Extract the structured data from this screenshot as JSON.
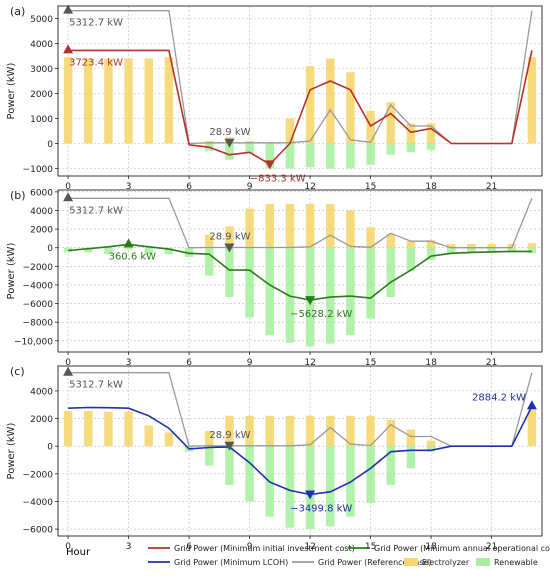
{
  "x_label": "Hour",
  "chart_data": [
    {
      "panel": "(a)",
      "type": "bar+line",
      "ylabel": "Power (kW)",
      "ylim": [
        -1300,
        5500
      ],
      "yticks": [
        -1000,
        0,
        1000,
        2000,
        3000,
        4000,
        5000
      ],
      "ytick_labels": [
        "−1000",
        "0",
        "1000",
        "2000",
        "3000",
        "4000",
        "5000"
      ],
      "xlim": [
        -0.5,
        23.5
      ],
      "xticks": [
        0,
        3,
        6,
        9,
        12,
        15,
        18,
        21
      ],
      "grid": true,
      "x": [
        0,
        1,
        2,
        3,
        4,
        5,
        6,
        7,
        8,
        9,
        10,
        11,
        12,
        13,
        14,
        15,
        16,
        17,
        18,
        19,
        20,
        21,
        22,
        23
      ],
      "electrolyzer": [
        3450,
        3400,
        3400,
        3400,
        3400,
        3450,
        0,
        100,
        250,
        100,
        0,
        1000,
        3100,
        3400,
        2850,
        1300,
        1650,
        800,
        800,
        0,
        0,
        0,
        0,
        3450
      ],
      "renewable": [
        0,
        0,
        0,
        0,
        0,
        0,
        0,
        -300,
        -650,
        -400,
        -1000,
        -1000,
        -950,
        -1000,
        -1000,
        -850,
        -450,
        -350,
        -250,
        0,
        0,
        0,
        0,
        0
      ],
      "series": [
        {
          "name": "Grid Power (Minimum initial investment cost)",
          "color": "#b5312a",
          "values": [
            3723.4,
            3723,
            3723,
            3723,
            3723,
            3723,
            -50,
            -150,
            -450,
            -350,
            -833.3,
            0,
            2150,
            2500,
            2150,
            700,
            1200,
            450,
            600,
            0,
            0,
            0,
            0,
            3723.4
          ]
        },
        {
          "name": "Grid Power (Reference case)",
          "color": "#999999",
          "values": [
            5312.7,
            5312.7,
            5312.7,
            5312.7,
            5312.7,
            5312.7,
            0,
            28.9,
            28.9,
            28.9,
            28.9,
            28.9,
            100,
            1350,
            150,
            50,
            1550,
            700,
            700,
            0,
            0,
            0,
            0,
            5312.7
          ]
        }
      ],
      "annotations": [
        {
          "text": "5312.7  kW",
          "x": 0,
          "y": 5312.7,
          "color": "#555555",
          "marker": "up"
        },
        {
          "text": "3723.4  kW",
          "x": 0,
          "y": 3723.4,
          "color": "#b5312a",
          "marker": "up"
        },
        {
          "text": "28.9  kW",
          "x": 8,
          "y": 28.9,
          "color": "#555555",
          "marker": "down"
        },
        {
          "text": "−833.3  kW",
          "x": 10,
          "y": -833.3,
          "color": "#b5312a",
          "marker": "down"
        }
      ]
    },
    {
      "panel": "(b)",
      "type": "bar+line",
      "ylabel": "Power (kW)",
      "ylim": [
        -11200,
        6200
      ],
      "yticks": [
        -10000,
        -8000,
        -6000,
        -4000,
        -2000,
        0,
        2000,
        4000,
        6000
      ],
      "ytick_labels": [
        "−10,000",
        "−8000",
        "−6000",
        "−4000",
        "−2000",
        "0",
        "2000",
        "4000",
        "6000"
      ],
      "xlim": [
        -0.5,
        23.5
      ],
      "xticks": [
        0,
        3,
        6,
        9,
        12,
        15,
        18,
        21
      ],
      "grid": true,
      "x": [
        0,
        1,
        2,
        3,
        4,
        5,
        6,
        7,
        8,
        9,
        10,
        11,
        12,
        13,
        14,
        15,
        16,
        17,
        18,
        19,
        20,
        21,
        22,
        23
      ],
      "electrolyzer": [
        0,
        0,
        0,
        360,
        0,
        0,
        0,
        1400,
        2300,
        4200,
        4700,
        4700,
        4700,
        4700,
        4000,
        2200,
        1500,
        700,
        800,
        400,
        400,
        400,
        400,
        500
      ],
      "renewable": [
        -500,
        -500,
        -700,
        -200,
        -700,
        -700,
        -1000,
        -3000,
        -5300,
        -7500,
        -9400,
        -10200,
        -10600,
        -10300,
        -9400,
        -7600,
        -5300,
        -2500,
        -1300,
        -600,
        -500,
        -500,
        -500,
        -600
      ],
      "series": [
        {
          "name": "Grid Power (Minimum annual operational cost)",
          "color": "#2d7a1e",
          "values": [
            -300,
            -100,
            100,
            360.6,
            100,
            -150,
            -600,
            -700,
            -2400,
            -2400,
            -4000,
            -5200,
            -5628.2,
            -5300,
            -5200,
            -5400,
            -3700,
            -2400,
            -900,
            -600,
            -500,
            -450,
            -400,
            -400
          ]
        },
        {
          "name": "Grid Power (Reference case)",
          "color": "#999999",
          "values": [
            5312.7,
            5312.7,
            5312.7,
            5312.7,
            5312.7,
            5312.7,
            0,
            28.9,
            28.9,
            28.9,
            28.9,
            28.9,
            100,
            1350,
            150,
            50,
            1550,
            700,
            700,
            0,
            0,
            0,
            0,
            5312.7
          ]
        }
      ],
      "annotations": [
        {
          "text": "5312.7  kW",
          "x": 0,
          "y": 5312.7,
          "color": "#555555",
          "marker": "up"
        },
        {
          "text": "360.6  kW",
          "x": 3,
          "y": 360.6,
          "color": "#2d7a1e",
          "marker": "up"
        },
        {
          "text": "28.9  kW",
          "x": 8,
          "y": 28.9,
          "color": "#555555",
          "marker": "down"
        },
        {
          "text": "−5628.2  kW",
          "x": 12,
          "y": -5628.2,
          "color": "#2d7a1e",
          "marker": "down"
        }
      ]
    },
    {
      "panel": "(c)",
      "type": "bar+line",
      "ylabel": "Power (kW)",
      "ylim": [
        -6500,
        5800
      ],
      "yticks": [
        -6000,
        -4000,
        -2000,
        0,
        2000,
        4000
      ],
      "ytick_labels": [
        "−6000",
        "−4000",
        "−2000",
        "0",
        "2000",
        "4000"
      ],
      "xlim": [
        -0.5,
        23.5
      ],
      "xticks": [
        0,
        3,
        6,
        9,
        12,
        15,
        18,
        21
      ],
      "grid": true,
      "x": [
        0,
        1,
        2,
        3,
        4,
        5,
        6,
        7,
        8,
        9,
        10,
        11,
        12,
        13,
        14,
        15,
        16,
        17,
        18,
        19,
        20,
        21,
        22,
        23
      ],
      "electrolyzer": [
        2550,
        2550,
        2500,
        2500,
        1500,
        1000,
        0,
        1100,
        2200,
        2200,
        2200,
        2200,
        2200,
        2200,
        2200,
        2200,
        1900,
        1200,
        400,
        0,
        0,
        0,
        0,
        2650
      ],
      "renewable": [
        0,
        0,
        0,
        0,
        0,
        0,
        -400,
        -1400,
        -2800,
        -4000,
        -5100,
        -5900,
        -6000,
        -5800,
        -5100,
        -4100,
        -2800,
        -1600,
        -400,
        0,
        0,
        0,
        0,
        0
      ],
      "series": [
        {
          "name": "Grid Power (Minimum LCOH)",
          "color": "#1f2fb0",
          "values": [
            2750,
            2800,
            2780,
            2750,
            2200,
            1300,
            -200,
            -100,
            -50,
            -1200,
            -2600,
            -3200,
            -3499.8,
            -3300,
            -2600,
            -1600,
            -400,
            -300,
            -300,
            0,
            0,
            0,
            0,
            2884.2
          ]
        },
        {
          "name": "Grid Power (Reference case)",
          "color": "#999999",
          "values": [
            5312.7,
            5312.7,
            5312.7,
            5312.7,
            5312.7,
            5312.7,
            0,
            28.9,
            28.9,
            28.9,
            28.9,
            28.9,
            100,
            1350,
            150,
            50,
            1550,
            700,
            700,
            0,
            0,
            0,
            0,
            5312.7
          ]
        }
      ],
      "annotations": [
        {
          "text": "5312.7  kW",
          "x": 0,
          "y": 5312.7,
          "color": "#555555",
          "marker": "up"
        },
        {
          "text": "28.9  kW",
          "x": 8,
          "y": 28.9,
          "color": "#555555",
          "marker": "down"
        },
        {
          "text": "−3499.8  kW",
          "x": 12,
          "y": -3499.8,
          "color": "#1f2fb0",
          "marker": "down"
        },
        {
          "text": "2884.2  kW",
          "x": 23,
          "y": 2884.2,
          "color": "#1f2fb0",
          "marker": "up"
        }
      ]
    }
  ],
  "legend": {
    "placement": "bottom",
    "items": [
      {
        "label": "Grid Power (Minimum initial investment cost)",
        "kind": "line",
        "color": "#b5312a"
      },
      {
        "label": "Grid Power (Minimum annual operational cost)",
        "kind": "line",
        "color": "#2d7a1e"
      },
      {
        "label": "Grid Power (Minimum LCOH)",
        "kind": "line",
        "color": "#1f2fb0"
      },
      {
        "label": "Grid Power (Reference case)",
        "kind": "line",
        "color": "#999999"
      },
      {
        "label": "Electrolyzer",
        "kind": "box",
        "color": "#f5d76e"
      },
      {
        "label": "Renewable",
        "kind": "box",
        "color": "#a8f0a0"
      }
    ]
  },
  "colors": {
    "electrolyzer": "#f5d76e",
    "renewable": "#a8f0a0",
    "grid": "#bbbbbb"
  }
}
